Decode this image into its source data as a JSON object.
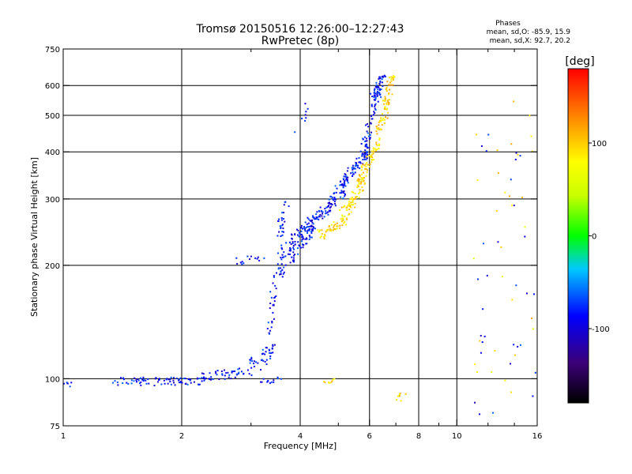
{
  "chart_data": {
    "type": "scatter",
    "title": "Tromsø 20150516 12:26:00–12:27:43",
    "subtitle": "RwPretec (8p)",
    "xlabel": "Frequency [MHz]",
    "ylabel": "Stationary phase Virtual Height [km]",
    "x_scale": "log",
    "y_scale": "log",
    "xlim": [
      1,
      16
    ],
    "ylim": [
      75,
      750
    ],
    "x_ticks": [
      1,
      2,
      4,
      6,
      8,
      10,
      16
    ],
    "x_tick_labels": [
      "1",
      "2",
      "4",
      "6",
      "8",
      "10",
      "16"
    ],
    "x_minor_ticks": [
      3,
      5,
      7,
      9,
      12,
      14
    ],
    "y_ticks": [
      75,
      100,
      200,
      300,
      400,
      500,
      600,
      750
    ],
    "y_tick_labels": [
      "75",
      "100",
      "200",
      "300",
      "400",
      "500",
      "600",
      "750"
    ],
    "grid_x": [
      2,
      4,
      6,
      8,
      10
    ],
    "grid_y": [
      100,
      200,
      300,
      400,
      500,
      600
    ],
    "stats": {
      "header": "Phases",
      "line_o": "mean, sd,O: -85.9, 15.9",
      "line_x": "mean, sd,X:  92.7, 20.2"
    },
    "colorbar": {
      "unit": "[deg]",
      "range": [
        -180,
        180
      ],
      "ticks": [
        100,
        0,
        -100
      ],
      "tick_labels": [
        "100",
        "0",
        "-100"
      ]
    },
    "series": [
      {
        "mode": "O",
        "phase_mean": -85.9,
        "segments": [
          {
            "x0": 1.0,
            "x1": 1.05,
            "y0": 96,
            "y1": 97,
            "n": 6,
            "spread": 2
          },
          {
            "x0": 1.3,
            "x1": 2.3,
            "y0": 98,
            "y1": 99,
            "n": 80,
            "spread": 2.5
          },
          {
            "x0": 2.2,
            "x1": 2.9,
            "y0": 101,
            "y1": 104,
            "n": 45,
            "spread": 3
          },
          {
            "x0": 2.9,
            "x1": 3.4,
            "y0": 105,
            "y1": 118,
            "n": 40,
            "spread": 6
          },
          {
            "x0": 3.2,
            "x1": 3.6,
            "y0": 98,
            "y1": 100,
            "n": 14,
            "spread": 1.5
          },
          {
            "x0": 3.35,
            "x1": 3.45,
            "y0": 125,
            "y1": 190,
            "n": 30,
            "spread": 6
          },
          {
            "x0": 2.8,
            "x1": 3.2,
            "y0": 205,
            "y1": 208,
            "n": 14,
            "spread": 5
          },
          {
            "x0": 3.5,
            "x1": 4.3,
            "y0": 200,
            "y1": 255,
            "n": 130,
            "spread": 18
          },
          {
            "x0": 3.5,
            "x1": 3.7,
            "y0": 240,
            "y1": 280,
            "n": 25,
            "spread": 18
          },
          {
            "x0": 4.2,
            "x1": 5.2,
            "y0": 250,
            "y1": 320,
            "n": 90,
            "spread": 12
          },
          {
            "x0": 5.0,
            "x1": 6.0,
            "y0": 320,
            "y1": 410,
            "n": 90,
            "spread": 10
          },
          {
            "x0": 5.8,
            "x1": 6.4,
            "y0": 400,
            "y1": 600,
            "n": 70,
            "spread": 18
          },
          {
            "x0": 6.1,
            "x1": 6.5,
            "y0": 560,
            "y1": 640,
            "n": 30,
            "spread": 12
          },
          {
            "x0": 3.9,
            "x1": 4.4,
            "y0": 460,
            "y1": 560,
            "n": 8,
            "spread": 25
          }
        ]
      },
      {
        "mode": "X",
        "phase_mean": 92.7,
        "segments": [
          {
            "x0": 4.5,
            "x1": 5.2,
            "y0": 240,
            "y1": 265,
            "n": 50,
            "spread": 8
          },
          {
            "x0": 5.1,
            "x1": 5.8,
            "y0": 270,
            "y1": 330,
            "n": 60,
            "spread": 12
          },
          {
            "x0": 5.6,
            "x1": 6.3,
            "y0": 330,
            "y1": 420,
            "n": 60,
            "spread": 12
          },
          {
            "x0": 6.2,
            "x1": 6.7,
            "y0": 420,
            "y1": 540,
            "n": 45,
            "spread": 15
          },
          {
            "x0": 6.6,
            "x1": 6.9,
            "y0": 540,
            "y1": 640,
            "n": 35,
            "spread": 15
          },
          {
            "x0": 4.6,
            "x1": 5.0,
            "y0": 98,
            "y1": 100,
            "n": 8,
            "spread": 1
          },
          {
            "x0": 7.1,
            "x1": 7.3,
            "y0": 88,
            "y1": 92,
            "n": 8,
            "spread": 2
          }
        ]
      },
      {
        "mode": "noise",
        "x_range": [
          11,
          16
        ],
        "y_range": [
          80,
          600
        ],
        "n": 60
      }
    ]
  }
}
